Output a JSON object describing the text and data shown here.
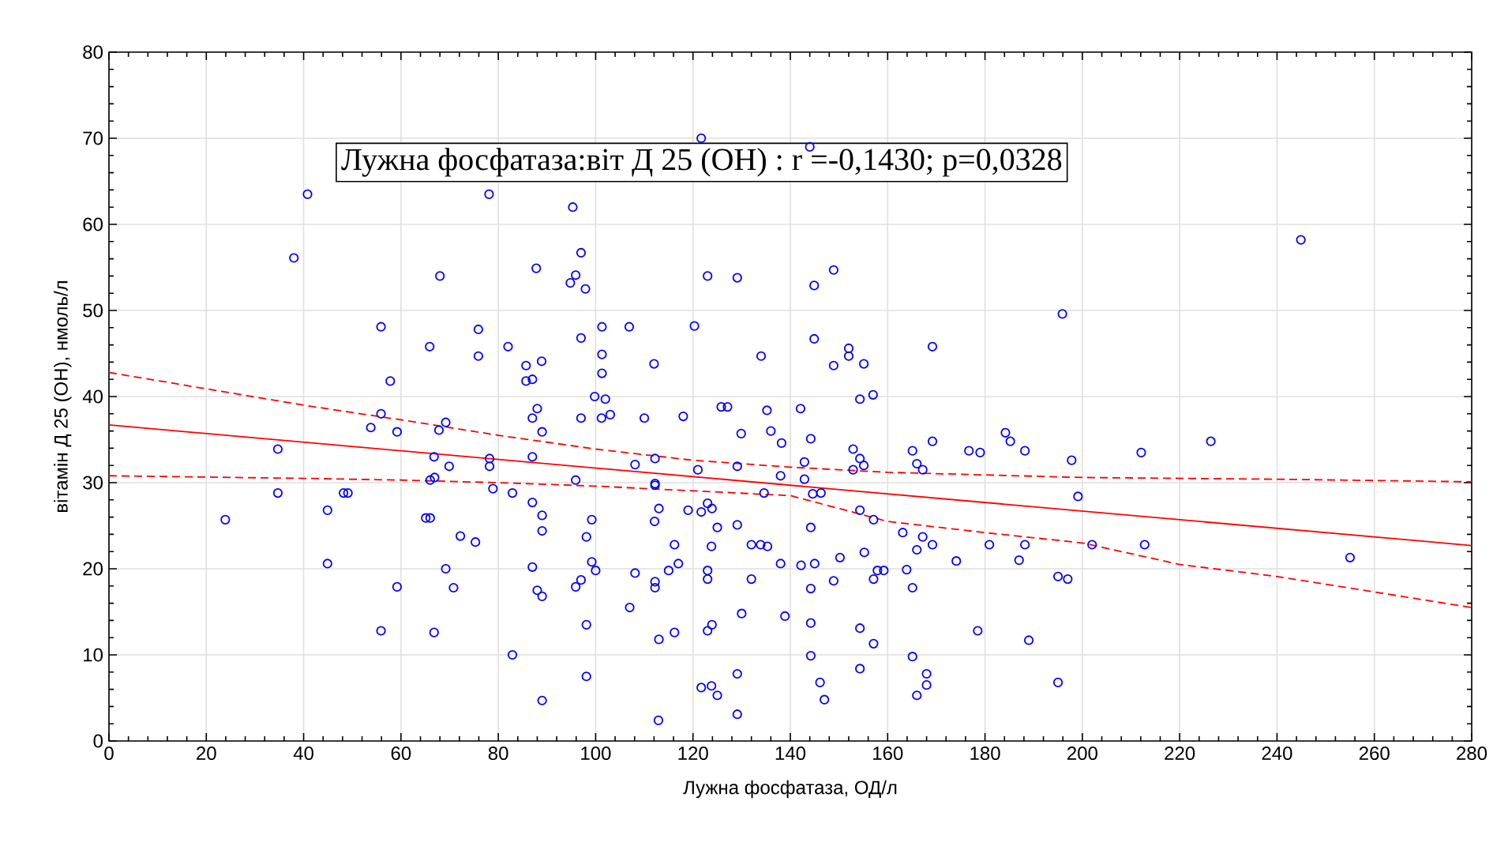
{
  "chart_data": {
    "type": "scatter",
    "xlabel": "Лужна фосфатаза, ОД/л",
    "ylabel": "вітамін Д 25 (ОН), нмоль/л",
    "annotations": [
      "Лужна фосфатаза:віт Д 25 (ОН) : r =-0,1430; p=0,0328"
    ],
    "xlim": [
      0,
      280
    ],
    "ylim": [
      0,
      80
    ],
    "xticks": [
      0,
      20,
      40,
      60,
      80,
      100,
      120,
      140,
      160,
      180,
      200,
      220,
      240,
      260,
      280
    ],
    "yticks": [
      0,
      10,
      20,
      30,
      40,
      50,
      60,
      70,
      80
    ],
    "grid": true,
    "series": [
      {
        "color": "#0000ff",
        "marker": "circle",
        "x": [
          40.8,
          78.1,
          38,
          68,
          87.8,
          55.9,
          75.9,
          65.9,
          75.9,
          82,
          57.8,
          85.7,
          88.9,
          85.7,
          87,
          95.3,
          97,
          95.9,
          94.8,
          97.9,
          121.7,
          144,
          123,
          129.1,
          144.9,
          148.9,
          101.3,
          106.9,
          120.3,
          97,
          101.3,
          101.3,
          112,
          134,
          144.9,
          152,
          152,
          148.9,
          155.1,
          169.2,
          99.8,
          102,
          97,
          101.2,
          103,
          110,
          118,
          125.8,
          127.1,
          135.2,
          142.1,
          154.3,
          157,
          129.9,
          136,
          138.2,
          144.2,
          152.9,
          154.3,
          155.1,
          152.9,
          165.1,
          169.2,
          166,
          167.2,
          176.7,
          179,
          184.2,
          185.2,
          188.2,
          95.9,
          108.1,
          112.2,
          112.2,
          112.2,
          121,
          129.1,
          138,
          142.9,
          142.9,
          144.6,
          146.3,
          134.6,
          113,
          112.1,
          119,
          121.7,
          123,
          123.9,
          125,
          129.1,
          99.2,
          98.1,
          99.2,
          100,
          97,
          95.9,
          108.1,
          107,
          98.1,
          98.1,
          112.2,
          112.2,
          116.2,
          117,
          115,
          113,
          116.2,
          112.9,
          123.8,
          123,
          123,
          123.9,
          123,
          121.7,
          123.8,
          125,
          129.1,
          129.1,
          130,
          132,
          132,
          133.9,
          135.3,
          138,
          138.9,
          142.2,
          145,
          144.2,
          144.2,
          144.2,
          144.2,
          146.1,
          147,
          148.9,
          150.2,
          154.3,
          157.1,
          155.2,
          157.1,
          157.9,
          159.2,
          154.3,
          157.1,
          154.3,
          163.1,
          167.2,
          166,
          169.2,
          163.9,
          165.1,
          174.1,
          180.9,
          188.2,
          187,
          165.1,
          168,
          168,
          166,
          178.5,
          189,
          55.9,
          53.8,
          59.2,
          69.2,
          67.8,
          66.8,
          69.9,
          78.2,
          78.2,
          88,
          87,
          89,
          87,
          34.7,
          34.7,
          23.9,
          44.9,
          44.9,
          48.2,
          49.1,
          66,
          66.9,
          65.1,
          66,
          72.2,
          75.3,
          78.9,
          82.9,
          87,
          89,
          89,
          69.2,
          70.8,
          59.2,
          55.9,
          66.8,
          87,
          88,
          89,
          82.9,
          89,
          244.9,
          195.9,
          197.8,
          199.1,
          212.1,
          226.4,
          202,
          212.8,
          255,
          195,
          197,
          195
        ],
        "values": [
          63.5,
          63.5,
          56.1,
          54,
          54.9,
          48.1,
          47.8,
          45.8,
          44.7,
          45.8,
          41.8,
          43.6,
          44.1,
          41.8,
          42,
          62,
          56.7,
          54.1,
          53.2,
          52.5,
          70,
          69,
          54,
          53.8,
          52.9,
          54.7,
          48.1,
          48.1,
          48.2,
          46.8,
          44.9,
          42.7,
          43.8,
          44.7,
          46.7,
          45.6,
          44.7,
          43.6,
          43.8,
          45.8,
          40,
          39.7,
          37.5,
          37.5,
          37.9,
          37.5,
          37.7,
          38.8,
          38.8,
          38.4,
          38.6,
          39.7,
          40.2,
          35.7,
          36,
          34.6,
          35.1,
          33.9,
          32.8,
          32,
          31.5,
          33.7,
          34.8,
          32.2,
          31.5,
          33.7,
          33.5,
          35.8,
          34.8,
          33.7,
          30.3,
          32.1,
          32.8,
          29.9,
          29.7,
          31.5,
          31.9,
          30.8,
          32.4,
          30.4,
          28.7,
          28.8,
          28.8,
          27,
          25.5,
          26.8,
          26.6,
          27.6,
          27,
          24.8,
          25.1,
          25.7,
          23.7,
          20.8,
          19.8,
          18.7,
          17.9,
          19.5,
          15.5,
          13.5,
          7.5,
          18.5,
          17.8,
          22.8,
          20.6,
          19.8,
          11.8,
          12.6,
          2.4,
          22.6,
          19.8,
          18.8,
          13.5,
          12.8,
          6.2,
          6.4,
          5.3,
          7.8,
          3.1,
          14.8,
          18.8,
          22.8,
          22.8,
          22.6,
          20.6,
          14.5,
          20.4,
          20.6,
          24.8,
          17.7,
          13.7,
          9.9,
          6.8,
          4.8,
          18.6,
          21.3,
          26.8,
          25.7,
          21.9,
          18.8,
          19.8,
          19.8,
          13.1,
          11.3,
          8.4,
          24.2,
          23.7,
          22.2,
          22.8,
          19.9,
          17.8,
          20.9,
          22.8,
          22.8,
          21,
          9.8,
          7.8,
          6.5,
          5.3,
          12.8,
          11.7,
          38,
          36.4,
          35.9,
          37,
          36.1,
          33,
          31.9,
          32.8,
          31.9,
          38.6,
          37.5,
          35.9,
          33,
          33.9,
          28.8,
          25.7,
          26.8,
          20.6,
          28.8,
          28.8,
          30.3,
          30.6,
          25.9,
          25.9,
          23.8,
          23.1,
          29.3,
          28.8,
          27.7,
          26.2,
          24.4,
          20,
          17.8,
          17.9,
          12.8,
          12.6,
          20.2,
          17.5,
          16.8,
          10,
          4.7,
          58.2,
          49.6,
          32.6,
          28.4,
          33.5,
          34.8,
          22.8,
          22.8,
          21.3,
          19.1,
          18.8,
          6.8
        ]
      },
      {
        "type": "line",
        "color": "#ff0000",
        "line_style": "solid",
        "x": [
          0,
          280
        ],
        "values": [
          36.7,
          22.7
        ]
      },
      {
        "type": "line",
        "color": "#ff0000",
        "line_style": "dashed",
        "x": [
          0,
          40,
          60,
          80,
          100,
          120,
          140,
          160,
          180,
          200,
          240,
          280
        ],
        "values": [
          42.8,
          39,
          37.3,
          35.5,
          33.9,
          32.6,
          31.8,
          31.2,
          30.9,
          30.6,
          30.4,
          30.1
        ]
      },
      {
        "type": "line",
        "color": "#ff0000",
        "line_style": "dashed",
        "x": [
          0,
          40,
          60,
          80,
          100,
          140,
          160,
          180,
          200,
          220,
          240,
          280
        ],
        "values": [
          30.8,
          30.5,
          30.3,
          30,
          29.6,
          28.5,
          25.5,
          24.2,
          23,
          20.5,
          19.1,
          15.5
        ]
      }
    ]
  }
}
